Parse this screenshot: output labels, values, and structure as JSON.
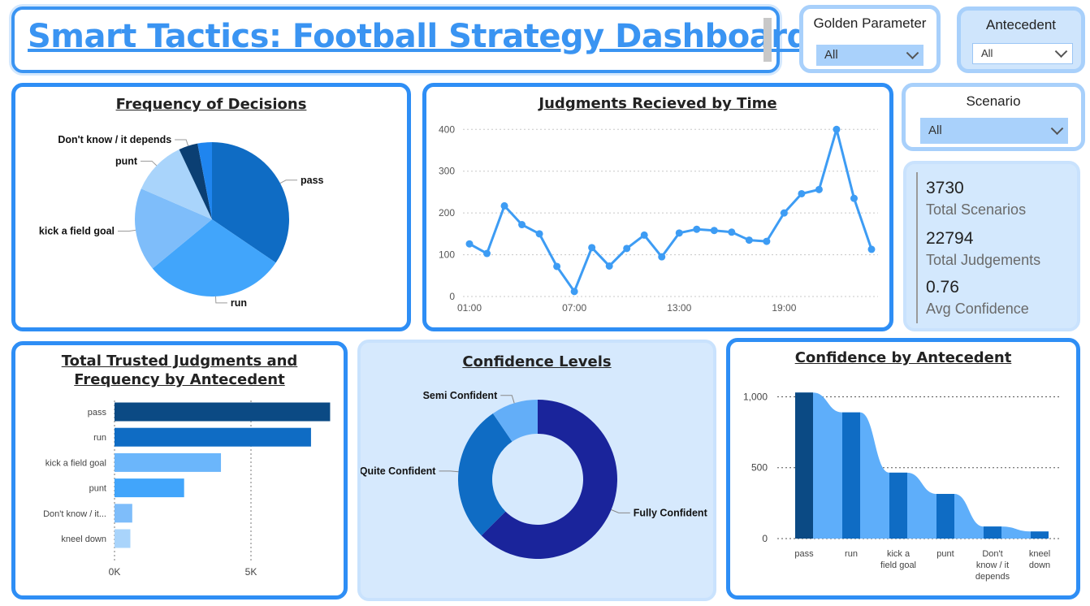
{
  "header": {
    "title": "Smart Tactics: Football Strategy Dashboard"
  },
  "slicers": {
    "golden_parameter": {
      "title": "Golden Parameter",
      "value": "All"
    },
    "antecedent": {
      "title": "Antecedent",
      "value": "All"
    },
    "scenario": {
      "title": "Scenario",
      "value": "All"
    }
  },
  "kpis": [
    {
      "value": "3730",
      "label": "Total Scenarios"
    },
    {
      "value": "22794",
      "label": "Total Judgements"
    },
    {
      "value": "0.76",
      "label": "Avg Confidence"
    }
  ],
  "colors": {
    "accent": "#2e8ef5",
    "dark_navy": "#0b4a84",
    "dark_blue": "#0f6cc4",
    "mid_blue": "#41a5fb",
    "light_blue": "#7ebdfa",
    "pale_blue": "#a9d4fb",
    "indigo": "#1a249b"
  },
  "chart_data": [
    {
      "id": "frequency",
      "type": "pie",
      "title": "Frequency of Decisions",
      "slices": [
        {
          "label": "pass",
          "value": 34.5,
          "color": "#0f6cc4"
        },
        {
          "label": "run",
          "value": 29.5,
          "color": "#41a5fb"
        },
        {
          "label": "kick a field goal",
          "value": 17.5,
          "color": "#7ebdfa"
        },
        {
          "label": "punt",
          "value": 11.5,
          "color": "#a9d4fb"
        },
        {
          "label": "Don't know / it depends",
          "value": 4,
          "color": "#0b3f73"
        },
        {
          "label": "",
          "value": 3,
          "color": "#1f85ef"
        }
      ]
    },
    {
      "id": "time",
      "type": "line",
      "title": "Judgments Recieved by Time",
      "x_ticks": [
        "01:00",
        "07:00",
        "13:00",
        "19:00"
      ],
      "x": [
        "01:00",
        "02:00",
        "03:00",
        "04:00",
        "05:00",
        "06:00",
        "07:00",
        "08:00",
        "09:00",
        "10:00",
        "11:00",
        "12:00",
        "13:00",
        "14:00",
        "15:00",
        "16:00",
        "17:00",
        "18:00",
        "19:00",
        "20:00",
        "21:00",
        "22:00",
        "23:00",
        "00:00"
      ],
      "values": [
        126,
        103,
        217,
        172,
        150,
        72,
        12,
        117,
        73,
        115,
        147,
        95,
        152,
        161,
        158,
        154,
        135,
        132,
        200,
        246,
        256,
        400,
        235,
        113
      ],
      "ylim": [
        0,
        420
      ],
      "y_ticks": [
        0,
        100,
        200,
        300,
        400
      ],
      "color": "#3d9cf4",
      "grid": true
    },
    {
      "id": "trusted",
      "type": "bar",
      "title": "Total Trusted Judgments and Frequency by Antecedent",
      "categories": [
        "pass",
        "run",
        "kick a field goal",
        "punt",
        "Don't know / it...",
        "kneel down"
      ],
      "values": [
        7900,
        7200,
        3900,
        2550,
        650,
        580
      ],
      "colors": [
        "#0b4a84",
        "#0f6cc4",
        "#6bb6fb",
        "#41a5fb",
        "#7ebdfa",
        "#a9d4fb"
      ],
      "x_ticks": [
        "0K",
        "5K"
      ],
      "xlim": [
        0,
        10000
      ]
    },
    {
      "id": "confidence",
      "type": "pie",
      "title": "Confidence Levels",
      "slices": [
        {
          "label": "Fully Confident",
          "value": 62.5,
          "color": "#1a249b"
        },
        {
          "label": "Quite Confident",
          "value": 28,
          "color": "#0f6cc4"
        },
        {
          "label": "Semi Confident",
          "value": 9.5,
          "color": "#63aef8"
        }
      ]
    },
    {
      "id": "antecedent_conf",
      "type": "bar",
      "title": "Confidence by Antecedent",
      "categories": [
        [
          "pass"
        ],
        [
          "run"
        ],
        [
          "kick a",
          "field goal"
        ],
        [
          "punt"
        ],
        [
          "Don't",
          "know / it",
          "depends"
        ],
        [
          "kneel",
          "down"
        ]
      ],
      "values": [
        1030,
        890,
        465,
        315,
        85,
        50
      ],
      "ylim": [
        0,
        1100
      ],
      "y_ticks": [
        "0",
        "500",
        "1,000"
      ],
      "colors": [
        "#0b4a84",
        "#0f6cc4",
        "#0f6cc4",
        "#0f6cc4",
        "#0f6cc4",
        "#0f6cc4"
      ],
      "ribbon_color": "#5eaefa"
    }
  ]
}
